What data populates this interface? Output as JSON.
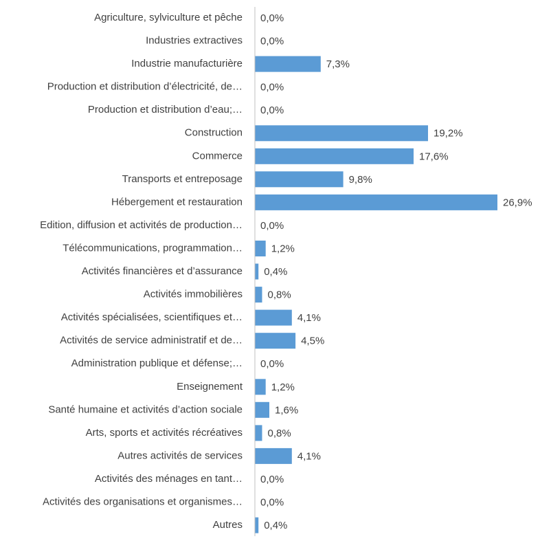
{
  "chart_data": {
    "type": "bar",
    "orientation": "horizontal",
    "title": "",
    "xlabel": "",
    "ylabel": "",
    "xlim": [
      0,
      26.9
    ],
    "grid": false,
    "legend": "none",
    "value_suffix": "%",
    "decimal_separator": ",",
    "bar_color": "#5B9BD5",
    "axis_color": "#BFBFBF",
    "categories": [
      "Agriculture, sylviculture et pêche",
      "Industries extractives",
      "Industrie manufacturière",
      "Production et distribution d’électricité, de…",
      "Production et distribution d’eau;…",
      "Construction",
      "Commerce",
      "Transports et entreposage",
      "Hébergement et restauration",
      "Edition, diffusion et activités de production…",
      "Télécommunications, programmation…",
      "Activités financières et d’assurance",
      "Activités immobilières",
      "Activités spécialisées, scientifiques et…",
      "Activités de service administratif et de…",
      "Administration publique et défense;…",
      "Enseignement",
      "Santé humaine et activités d’action sociale",
      "Arts, sports et activités récréatives",
      "Autres activités de services",
      "Activités des ménages en tant…",
      "Activités des organisations et organismes…",
      "Autres"
    ],
    "values": [
      0.0,
      0.0,
      7.3,
      0.0,
      0.0,
      19.2,
      17.6,
      9.8,
      26.9,
      0.0,
      1.2,
      0.4,
      0.8,
      4.1,
      4.5,
      0.0,
      1.2,
      1.6,
      0.8,
      4.1,
      0.0,
      0.0,
      0.4
    ],
    "value_labels": [
      "0,0%",
      "0,0%",
      "7,3%",
      "0,0%",
      "0,0%",
      "19,2%",
      "17,6%",
      "9,8%",
      "26,9%",
      "0,0%",
      "1,2%",
      "0,4%",
      "0,8%",
      "4,1%",
      "4,5%",
      "0,0%",
      "1,2%",
      "1,6%",
      "0,8%",
      "4,1%",
      "0,0%",
      "0,0%",
      "0,4%"
    ]
  }
}
